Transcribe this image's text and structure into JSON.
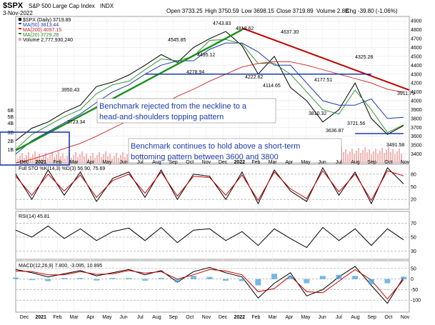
{
  "header": {
    "symbol": "$SPX",
    "name": "S&P 500 Large Cap Index",
    "exchange": "INDX",
    "date": "3-Nov-2022",
    "open": "Open 3733.25",
    "high": "High 3750.59",
    "low": "Low 3698.15",
    "close": "Close 3719.89",
    "volume": "Volume 2.8B",
    "change": "Chg -39.80 (-1.06%)"
  },
  "legend": {
    "price": "$SPX (Daily) 3719.89",
    "ma50": "MA(50) 3813.44",
    "ma200": "MA(200) 4097.15",
    "ma20": "MA(20) 3729.28",
    "volume": "Volume 2,777,930,240"
  },
  "annotations": {
    "neckline_note": [
      "Benchmark rejected from the neckline to a",
      "head-and-shoulders topping pattern"
    ],
    "bottom_note": [
      "Benchmark continues to hold above a short-term",
      "bottoming pattern between 3600 and 3800"
    ]
  },
  "price_labels": [
    {
      "text": "4818.62"
    },
    {
      "text": "4743.83"
    },
    {
      "text": "4637.30"
    },
    {
      "text": "4545.85"
    },
    {
      "text": "4495.12"
    },
    {
      "text": "4325.28"
    },
    {
      "text": "4278.94"
    },
    {
      "text": "4222.62"
    },
    {
      "text": "4177.51"
    },
    {
      "text": "4114.65"
    },
    {
      "text": "3950.43"
    },
    {
      "text": "3911.79"
    },
    {
      "text": "3810.32"
    },
    {
      "text": "3723.34"
    },
    {
      "text": "3721.56"
    },
    {
      "text": "3636.87"
    },
    {
      "text": "3491.58"
    }
  ],
  "stoch_label": "Full STO %K(14,3) %D(3) 56.90, 75.69",
  "rsi_label": "RSI(14) 45.81",
  "macd_label": "MACD(12,26,9) 7.800, -3.095, 10.895",
  "colors": {
    "macd_line": "#000000",
    "signal_line": "#cc0000",
    "histogram": "#4aa3d9"
  },
  "chart_data": [
    {
      "type": "line",
      "title": "$SPX S&P 500 Large Cap Index",
      "x_ticks": [
        "Dec",
        "2021",
        "Feb",
        "Mar",
        "Apr",
        "May",
        "Jun",
        "Jul",
        "Aug",
        "Sep",
        "Oct",
        "Nov",
        "Dec",
        "2022",
        "Feb",
        "Mar",
        "Apr",
        "May",
        "Jun",
        "Jul",
        "Aug",
        "Sep",
        "Oct",
        "Nov"
      ],
      "x": [
        "Nov-20",
        "Dec-20",
        "Jan-21",
        "Feb-21",
        "Mar-21",
        "Apr-21",
        "May-21",
        "Jun-21",
        "Jul-21",
        "Aug-21",
        "Sep-21",
        "Oct-21",
        "Nov-21",
        "Dec-21",
        "Jan-22",
        "Feb-22",
        "Mar-22",
        "Apr-22",
        "May-22",
        "Jun-22",
        "Jul-22",
        "Aug-22",
        "Sep-22",
        "Oct-22",
        "Nov-22"
      ],
      "y_ticks": [
        3400,
        3500,
        3600,
        3700,
        3800,
        3900,
        4000,
        4100,
        4200,
        4300,
        4400,
        4500,
        4600,
        4700,
        4800,
        4900
      ],
      "ylim": [
        3300,
        4950
      ],
      "series": [
        {
          "name": "$SPX (Daily)",
          "values": [
            3550,
            3690,
            3760,
            3870,
            3950,
            4160,
            4210,
            4290,
            4400,
            4520,
            4430,
            4600,
            4700,
            4780,
            4620,
            4300,
            4500,
            4150,
            4000,
            3760,
            3900,
            4200,
            3800,
            3620,
            3720
          ]
        },
        {
          "name": "MA(50)",
          "values": [
            3400,
            3550,
            3650,
            3750,
            3850,
            3980,
            4100,
            4180,
            4300,
            4400,
            4450,
            4450,
            4580,
            4650,
            4650,
            4550,
            4400,
            4400,
            4200,
            4000,
            3950,
            3950,
            4020,
            3800,
            3813
          ]
        },
        {
          "name": "MA(20)",
          "values": [
            3450,
            3620,
            3720,
            3820,
            3900,
            4080,
            4180,
            4220,
            4350,
            4470,
            4450,
            4500,
            4680,
            4690,
            4640,
            4420,
            4420,
            4300,
            4100,
            3900,
            3850,
            4120,
            3900,
            3640,
            3729
          ]
        },
        {
          "name": "MA(200)",
          "values": [
            3300,
            3340,
            3400,
            3460,
            3520,
            3600,
            3690,
            3780,
            3860,
            3950,
            4050,
            4130,
            4220,
            4300,
            4380,
            4420,
            4440,
            4440,
            4400,
            4350,
            4300,
            4250,
            4200,
            4130,
            4097
          ]
        }
      ],
      "trendlines": [
        {
          "name": "uptrend",
          "from": [
            "Nov-20",
            3440
          ],
          "to": [
            "Jan-22",
            4800
          ]
        },
        {
          "name": "downtrend",
          "from": [
            "Jan-22",
            4818.62
          ],
          "to": [
            "Nov-22",
            4120
          ]
        },
        {
          "name": "neckline",
          "from": [
            "Jul-21",
            4300
          ],
          "to": [
            "Sep-22",
            4300
          ]
        },
        {
          "name": "support",
          "from": [
            "Aug-22",
            3630
          ],
          "to": [
            "Nov-22",
            3630
          ]
        }
      ]
    },
    {
      "type": "line",
      "title": "Full STO %K(14,3) %D(3)",
      "y_ticks": [
        20,
        50,
        80
      ],
      "ylim": [
        0,
        100
      ],
      "series": [
        {
          "name": "%K",
          "values": [
            80,
            20,
            90,
            30,
            85,
            15,
            70,
            85,
            25,
            90,
            20,
            80,
            75,
            20,
            85,
            10,
            90,
            40,
            15,
            95,
            30,
            85,
            10,
            95,
            57
          ]
        },
        {
          "name": "%D",
          "values": [
            75,
            30,
            80,
            40,
            78,
            25,
            65,
            80,
            35,
            85,
            28,
            75,
            72,
            30,
            78,
            18,
            85,
            45,
            22,
            88,
            38,
            80,
            18,
            88,
            76
          ]
        }
      ]
    },
    {
      "type": "line",
      "title": "RSI(14)",
      "y_ticks": [
        30,
        50,
        70
      ],
      "ylim": [
        20,
        85
      ],
      "series": [
        {
          "name": "RSI",
          "values": [
            60,
            50,
            66,
            48,
            62,
            45,
            58,
            63,
            45,
            64,
            42,
            60,
            62,
            45,
            58,
            38,
            62,
            48,
            35,
            64,
            45,
            62,
            38,
            62,
            46
          ]
        }
      ]
    },
    {
      "type": "line",
      "title": "MACD(12,26,9)",
      "y_ticks": [
        -100,
        -50,
        0,
        50
      ],
      "ylim": [
        -150,
        80
      ],
      "series": [
        {
          "name": "MACD",
          "values": [
            45,
            30,
            10,
            25,
            40,
            15,
            30,
            45,
            20,
            40,
            -15,
            35,
            55,
            30,
            10,
            -90,
            -20,
            30,
            -80,
            -50,
            10,
            60,
            -30,
            -115,
            8
          ]
        },
        {
          "name": "Signal",
          "values": [
            38,
            35,
            20,
            20,
            35,
            22,
            25,
            40,
            28,
            35,
            0,
            20,
            45,
            38,
            20,
            -60,
            -45,
            15,
            -60,
            -65,
            -10,
            45,
            -5,
            -95,
            -3
          ]
        },
        {
          "name": "Histogram",
          "values": [
            7,
            -5,
            -10,
            5,
            5,
            -7,
            5,
            5,
            -8,
            5,
            -15,
            15,
            10,
            -8,
            -10,
            -30,
            25,
            15,
            -20,
            15,
            20,
            15,
            -25,
            -20,
            11
          ]
        }
      ]
    }
  ]
}
